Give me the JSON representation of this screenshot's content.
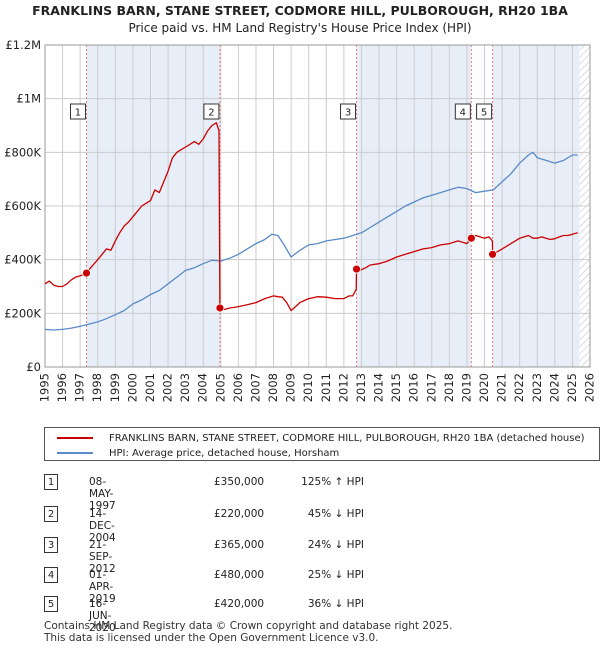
{
  "header": {
    "title": "FRANKLINS BARN, STANE STREET, CODMORE HILL, PULBOROUGH, RH20 1BA",
    "subtitle": "Price paid vs. HM Land Registry's House Price Index (HPI)"
  },
  "colors": {
    "red": "#cc0000",
    "blue": "#5a8bc8",
    "shade": "#e8eef8",
    "grid": "#cccccc",
    "vline": "#e08080"
  },
  "chart_data": {
    "type": "line",
    "title": "FRANKLINS BARN, STANE STREET, CODMORE HILL, PULBOROUGH, RH20 1BA",
    "subtitle": "Price paid vs. HM Land Registry's House Price Index (HPI)",
    "xlabel": "",
    "ylabel": "",
    "xlim": [
      1995,
      2026
    ],
    "ylim": [
      0,
      1200000
    ],
    "yticks": [
      0,
      200000,
      400000,
      600000,
      800000,
      1000000,
      1200000
    ],
    "ytick_labels": [
      "£0",
      "£200K",
      "£400K",
      "£600K",
      "£800K",
      "£1M",
      "£1.2M"
    ],
    "xticks": [
      1995,
      1996,
      1997,
      1998,
      1999,
      2000,
      2001,
      2002,
      2003,
      2004,
      2005,
      2006,
      2007,
      2008,
      2009,
      2010,
      2011,
      2012,
      2013,
      2014,
      2015,
      2016,
      2017,
      2018,
      2019,
      2020,
      2021,
      2022,
      2023,
      2024,
      2025,
      2026
    ],
    "grid": true,
    "shaded_ranges": [
      [
        1997.36,
        2004.95
      ],
      [
        2012.72,
        2019.25
      ],
      [
        2020.46,
        2025.4
      ]
    ],
    "hatched_range": [
      2025.4,
      2026
    ],
    "series": [
      {
        "name": "FRANKLINS BARN, STANE STREET, CODMORE HILL, PULBOROUGH, RH20 1BA (detached house)",
        "color": "#cc0000",
        "x": [
          1995.0,
          1995.25,
          1995.5,
          1995.75,
          1996.0,
          1996.25,
          1996.5,
          1996.75,
          1997.0,
          1997.2,
          1997.36,
          1997.6,
          1997.8,
          1998.0,
          1998.25,
          1998.5,
          1998.75,
          1999.0,
          1999.25,
          1999.5,
          1999.75,
          2000.0,
          2000.25,
          2000.5,
          2000.75,
          2001.0,
          2001.25,
          2001.5,
          2001.75,
          2002.0,
          2002.25,
          2002.5,
          2002.75,
          2003.0,
          2003.25,
          2003.5,
          2003.75,
          2004.0,
          2004.25,
          2004.5,
          2004.75,
          2004.9,
          2004.95,
          2005.0,
          2005.25,
          2005.5,
          2005.75,
          2006.0,
          2006.5,
          2007.0,
          2007.5,
          2007.75,
          2008.0,
          2008.25,
          2008.5,
          2008.75,
          2009.0,
          2009.25,
          2009.5,
          2009.75,
          2010.0,
          2010.5,
          2011.0,
          2011.5,
          2012.0,
          2012.3,
          2012.5,
          2012.7,
          2012.72,
          2012.9,
          2013.25,
          2013.5,
          2014.0,
          2014.5,
          2015.0,
          2015.5,
          2016.0,
          2016.5,
          2017.0,
          2017.5,
          2018.0,
          2018.5,
          2018.75,
          2019.0,
          2019.25,
          2019.5,
          2019.75,
          2020.0,
          2020.25,
          2020.45,
          2020.46,
          2020.6,
          2020.75,
          2021.0,
          2021.25,
          2021.5,
          2021.75,
          2022.0,
          2022.25,
          2022.5,
          2022.75,
          2023.0,
          2023.25,
          2023.5,
          2023.75,
          2024.0,
          2024.25,
          2024.5,
          2024.75,
          2025.0,
          2025.3
        ],
        "values": [
          310000,
          320000,
          305000,
          300000,
          300000,
          310000,
          325000,
          335000,
          340000,
          345000,
          350000,
          370000,
          385000,
          400000,
          420000,
          440000,
          435000,
          470000,
          500000,
          525000,
          540000,
          560000,
          580000,
          600000,
          610000,
          620000,
          660000,
          650000,
          690000,
          730000,
          780000,
          800000,
          810000,
          820000,
          830000,
          840000,
          830000,
          850000,
          880000,
          900000,
          910000,
          880000,
          220000,
          215000,
          215000,
          220000,
          222000,
          225000,
          232000,
          240000,
          255000,
          260000,
          265000,
          262000,
          260000,
          240000,
          210000,
          225000,
          240000,
          248000,
          255000,
          262000,
          260000,
          255000,
          255000,
          265000,
          265000,
          290000,
          365000,
          360000,
          370000,
          380000,
          385000,
          395000,
          410000,
          420000,
          430000,
          440000,
          445000,
          455000,
          460000,
          470000,
          465000,
          460000,
          480000,
          490000,
          485000,
          480000,
          485000,
          470000,
          420000,
          425000,
          430000,
          440000,
          450000,
          460000,
          470000,
          480000,
          485000,
          490000,
          480000,
          480000,
          485000,
          480000,
          475000,
          478000,
          485000,
          490000,
          490000,
          495000,
          500000
        ]
      },
      {
        "name": "HPI: Average price, detached house, Horsham",
        "color": "#5a8bc8",
        "x": [
          1995.0,
          1995.5,
          1996.0,
          1996.5,
          1997.0,
          1997.5,
          1998.0,
          1998.5,
          1999.0,
          1999.5,
          2000.0,
          2000.5,
          2001.0,
          2001.5,
          2002.0,
          2002.5,
          2003.0,
          2003.5,
          2004.0,
          2004.5,
          2005.0,
          2005.5,
          2006.0,
          2006.5,
          2007.0,
          2007.5,
          2007.9,
          2008.25,
          2008.6,
          2009.0,
          2009.4,
          2009.75,
          2010.0,
          2010.5,
          2011.0,
          2011.5,
          2012.0,
          2012.5,
          2013.0,
          2013.5,
          2014.0,
          2014.5,
          2015.0,
          2015.5,
          2016.0,
          2016.5,
          2017.0,
          2017.5,
          2018.0,
          2018.5,
          2019.0,
          2019.5,
          2020.0,
          2020.5,
          2021.0,
          2021.5,
          2022.0,
          2022.5,
          2022.75,
          2023.0,
          2023.5,
          2024.0,
          2024.5,
          2025.0,
          2025.3
        ],
        "values": [
          140000,
          138000,
          140000,
          145000,
          152000,
          160000,
          168000,
          180000,
          195000,
          210000,
          235000,
          250000,
          270000,
          285000,
          310000,
          335000,
          360000,
          370000,
          385000,
          398000,
          395000,
          405000,
          420000,
          440000,
          460000,
          475000,
          495000,
          490000,
          455000,
          410000,
          430000,
          445000,
          455000,
          460000,
          470000,
          475000,
          480000,
          490000,
          500000,
          520000,
          540000,
          560000,
          580000,
          600000,
          615000,
          630000,
          640000,
          650000,
          660000,
          670000,
          665000,
          650000,
          655000,
          660000,
          690000,
          720000,
          760000,
          790000,
          800000,
          780000,
          770000,
          760000,
          770000,
          790000,
          790000
        ]
      }
    ],
    "points": [
      {
        "label": "1",
        "x": 1997.36,
        "y": 350000
      },
      {
        "label": "2",
        "x": 2004.95,
        "y": 220000
      },
      {
        "label": "3",
        "x": 2012.72,
        "y": 365000
      },
      {
        "label": "4",
        "x": 2019.25,
        "y": 480000
      },
      {
        "label": "5",
        "x": 2020.46,
        "y": 420000
      }
    ]
  },
  "legend": {
    "red_label": "FRANKLINS BARN, STANE STREET, CODMORE HILL, PULBOROUGH, RH20 1BA (detached house)",
    "blue_label": "HPI: Average price, detached house, Horsham"
  },
  "transactions": [
    {
      "num": "1",
      "date": "08-MAY-1997",
      "price": "£350,000",
      "hpi": "125% ↑ HPI"
    },
    {
      "num": "2",
      "date": "14-DEC-2004",
      "price": "£220,000",
      "hpi": "45% ↓ HPI"
    },
    {
      "num": "3",
      "date": "21-SEP-2012",
      "price": "£365,000",
      "hpi": "24% ↓ HPI"
    },
    {
      "num": "4",
      "date": "01-APR-2019",
      "price": "£480,000",
      "hpi": "25% ↓ HPI"
    },
    {
      "num": "5",
      "date": "16-JUN-2020",
      "price": "£420,000",
      "hpi": "36% ↓ HPI"
    }
  ],
  "footer": {
    "line1": "Contains HM Land Registry data © Crown copyright and database right 2025.",
    "line2": "This data is licensed under the Open Government Licence v3.0."
  }
}
